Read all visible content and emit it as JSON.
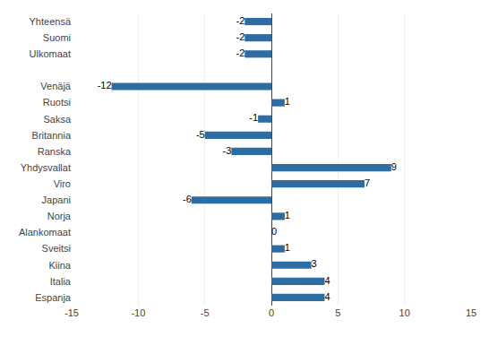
{
  "chart_data": {
    "type": "bar",
    "orientation": "horizontal",
    "categories": [
      "Yhteensä",
      "Suomi",
      "Ulkomaat",
      null,
      "Venäjä",
      "Ruotsi",
      "Saksa",
      "Britannia",
      "Ranska",
      "Yhdysvallat",
      "Viro",
      "Japani",
      "Norja",
      "Alankomaat",
      "Sveitsi",
      "Kiina",
      "Italia",
      "Espanja"
    ],
    "values": [
      -2,
      -2,
      -2,
      null,
      -12,
      1,
      -1,
      -5,
      -3,
      9,
      7,
      -6,
      1,
      0,
      1,
      3,
      4,
      4
    ],
    "color": "#2e6da4",
    "xlim": [
      -15,
      15
    ],
    "xticks": [
      -15,
      -10,
      -5,
      0,
      5,
      10,
      15
    ],
    "grid": true,
    "data_labels": true
  }
}
